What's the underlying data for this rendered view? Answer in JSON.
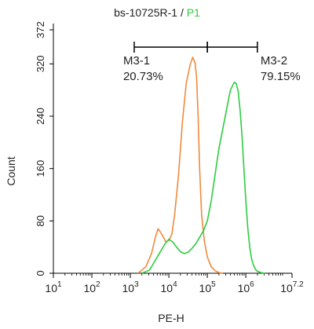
{
  "title": {
    "sample": "bs-10725R-1",
    "separator": " / ",
    "gate": "P1"
  },
  "colors": {
    "control": "#f08a3c",
    "sample": "#2ecc40",
    "axis": "#000000",
    "text": "#222222",
    "gate_label_green": "#2ecc40"
  },
  "chart_data": {
    "type": "line",
    "title": "bs-10725R-1 / P1",
    "xlabel": "PE-H",
    "ylabel": "Count",
    "x_scale": "log",
    "xlim": [
      1,
      7.2
    ],
    "ylim": [
      0,
      372
    ],
    "x_ticks": [
      {
        "base": "10",
        "exp": "1",
        "value": 1
      },
      {
        "base": "10",
        "exp": "2",
        "value": 2
      },
      {
        "base": "10",
        "exp": "3",
        "value": 3
      },
      {
        "base": "10",
        "exp": "4",
        "value": 4
      },
      {
        "base": "10",
        "exp": "5",
        "value": 5
      },
      {
        "base": "10",
        "exp": "6",
        "value": 6
      },
      {
        "base": "10",
        "exp": "7.2",
        "value": 7.2
      }
    ],
    "y_ticks": [
      "0",
      "80",
      "160",
      "240",
      "320",
      "372"
    ],
    "y_tick_values": [
      0,
      80,
      160,
      240,
      320,
      372
    ],
    "series": [
      {
        "color": "#f08a3c",
        "x": [
          3.2,
          3.4,
          3.55,
          3.65,
          3.72,
          3.78,
          3.85,
          3.92,
          4.0,
          4.08,
          4.15,
          4.25,
          4.35,
          4.45,
          4.55,
          4.62,
          4.68,
          4.72,
          4.76,
          4.8,
          4.85,
          4.92,
          5.0,
          5.1,
          5.2,
          5.3,
          5.4
        ],
        "y": [
          0,
          10,
          30,
          55,
          68,
          63,
          56,
          48,
          50,
          60,
          90,
          150,
          230,
          290,
          318,
          330,
          322,
          300,
          240,
          160,
          90,
          50,
          25,
          10,
          4,
          1,
          0
        ]
      },
      {
        "color": "#2ecc40",
        "x": [
          3.3,
          3.5,
          3.6,
          3.7,
          3.8,
          3.9,
          4.0,
          4.1,
          4.2,
          4.3,
          4.4,
          4.5,
          4.6,
          4.7,
          4.8,
          4.9,
          5.0,
          5.1,
          5.2,
          5.3,
          5.4,
          5.5,
          5.6,
          5.7,
          5.75,
          5.8,
          5.85,
          5.9,
          5.95,
          6.0,
          6.05,
          6.1,
          6.15,
          6.2,
          6.25,
          6.3,
          6.4,
          6.5
        ],
        "y": [
          0,
          5,
          15,
          25,
          35,
          45,
          52,
          48,
          40,
          33,
          30,
          32,
          38,
          45,
          55,
          65,
          80,
          110,
          150,
          190,
          220,
          250,
          280,
          292,
          290,
          278,
          250,
          210,
          160,
          110,
          70,
          40,
          22,
          12,
          6,
          3,
          1,
          0
        ]
      }
    ],
    "gates": [
      {
        "name": "M3-1",
        "percent": "20.73%",
        "x_start": 3.1,
        "x_end": 5.0
      },
      {
        "name": "M3-2",
        "percent": "79.15%",
        "x_start": 5.0,
        "x_end": 6.3
      }
    ]
  }
}
